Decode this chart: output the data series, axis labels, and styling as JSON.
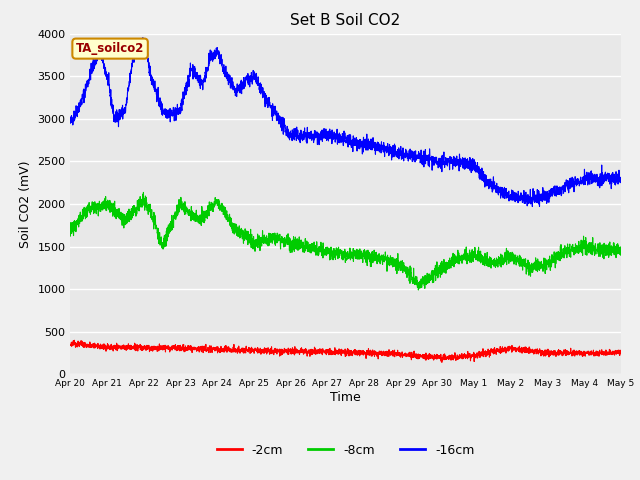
{
  "title": "Set B Soil CO2",
  "xlabel": "Time",
  "ylabel": "Soil CO2 (mV)",
  "ylim": [
    0,
    4000
  ],
  "yticks": [
    0,
    500,
    1000,
    1500,
    2000,
    2500,
    3000,
    3500,
    4000
  ],
  "fig_bg_color": "#f0f0f0",
  "plot_bg_color": "#e8e8e8",
  "line_colors": {
    "2cm": "#ff0000",
    "8cm": "#00cc00",
    "16cm": "#0000ff"
  },
  "legend_label_2cm": "-2cm",
  "legend_label_8cm": "-8cm",
  "legend_label_16cm": "-16cm",
  "annotation_text": "TA_soilco2",
  "annotation_bg": "#ffffcc",
  "annotation_border": "#cc8800",
  "annotation_text_color": "#990000",
  "x_tick_labels": [
    "Apr 20",
    "Apr 21",
    "Apr 22",
    "Apr 23",
    "Apr 24",
    "Apr 25",
    "Apr 26",
    "Apr 27",
    "Apr 28",
    "Apr 29",
    "Apr 30",
    "May 1",
    "May 2",
    "May 3",
    "May 4",
    "May 5"
  ],
  "num_points": 3000,
  "seed": 42
}
